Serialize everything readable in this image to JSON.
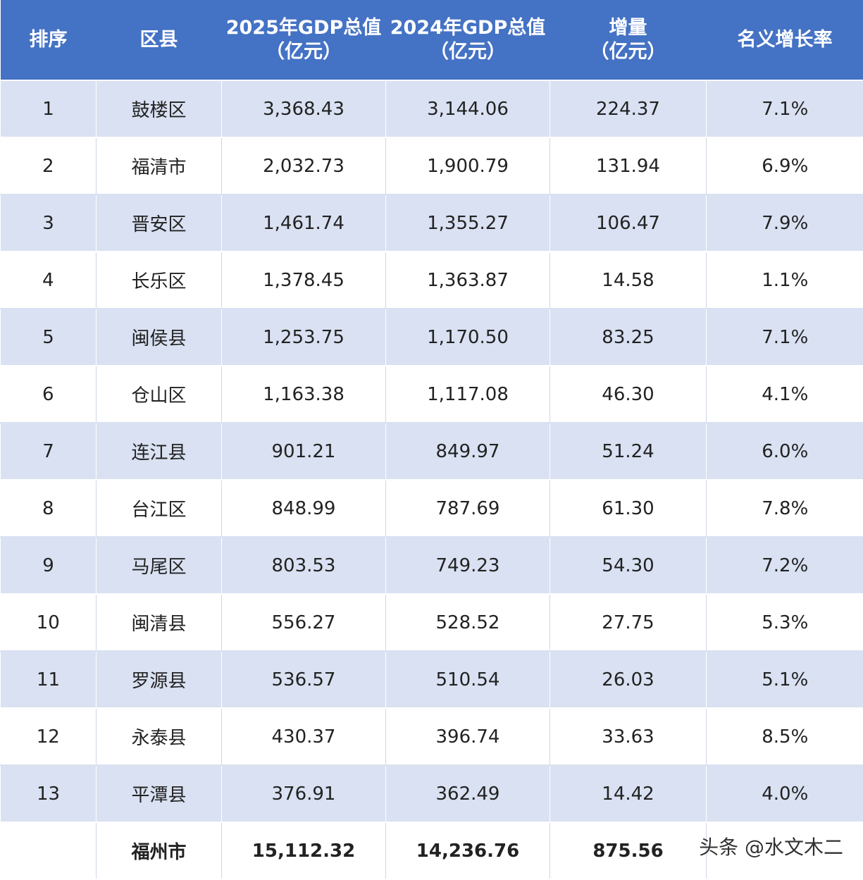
{
  "table": {
    "headers": [
      {
        "line1": "排序",
        "line2": ""
      },
      {
        "line1": "区县",
        "line2": ""
      },
      {
        "line1": "2025年GDP总值",
        "line2": "（亿元）"
      },
      {
        "line1": "2024年GDP总值",
        "line2": "（亿元）"
      },
      {
        "line1": "增量",
        "line2": "（亿元）"
      },
      {
        "line1": "名义增长率",
        "line2": ""
      }
    ],
    "rows": [
      [
        "1",
        "鼓楼区",
        "3,368.43",
        "3,144.06",
        "224.37",
        "7.1%"
      ],
      [
        "2",
        "福清市",
        "2,032.73",
        "1,900.79",
        "131.94",
        "6.9%"
      ],
      [
        "3",
        "晋安区",
        "1,461.74",
        "1,355.27",
        "106.47",
        "7.9%"
      ],
      [
        "4",
        "长乐区",
        "1,378.45",
        "1,363.87",
        "14.58",
        "1.1%"
      ],
      [
        "5",
        "闽侯县",
        "1,253.75",
        "1,170.50",
        "83.25",
        "7.1%"
      ],
      [
        "6",
        "仓山区",
        "1,163.38",
        "1,117.08",
        "46.30",
        "4.1%"
      ],
      [
        "7",
        "连江县",
        "901.21",
        "849.97",
        "51.24",
        "6.0%"
      ],
      [
        "8",
        "台江区",
        "848.99",
        "787.69",
        "61.30",
        "7.8%"
      ],
      [
        "9",
        "马尾区",
        "803.53",
        "749.23",
        "54.30",
        "7.2%"
      ],
      [
        "10",
        "闽清县",
        "556.27",
        "528.52",
        "27.75",
        "5.3%"
      ],
      [
        "11",
        "罗源县",
        "536.57",
        "510.54",
        "26.03",
        "5.1%"
      ],
      [
        "12",
        "永泰县",
        "430.37",
        "396.74",
        "33.63",
        "8.5%"
      ],
      [
        "13",
        "平潭县",
        "376.91",
        "362.49",
        "14.42",
        "4.0%"
      ]
    ],
    "total": [
      "",
      "福州市",
      "15,112.32",
      "14,236.76",
      "875.56",
      ""
    ]
  },
  "watermark": "头条 @水文木二",
  "colors": {
    "header_bg": "#4472c4",
    "band_bg": "#d9e1f2",
    "header_text": "#ffffff"
  }
}
